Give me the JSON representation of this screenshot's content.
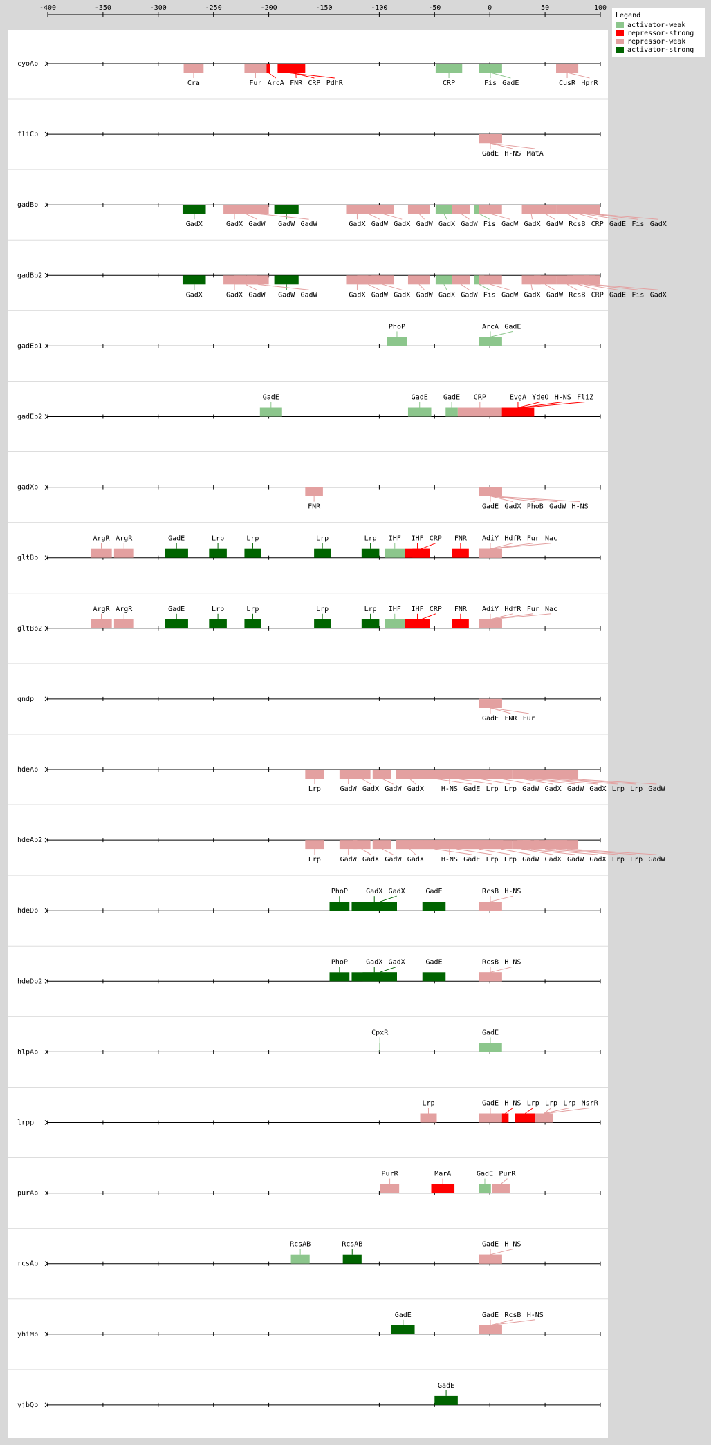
{
  "axis": {
    "range": [
      -400,
      100
    ],
    "ticks": [
      -400,
      -350,
      -300,
      -250,
      -200,
      -150,
      -100,
      -50,
      0,
      50,
      100
    ]
  },
  "legend": {
    "title": "Legend",
    "items": [
      {
        "label": "activator-weak",
        "color": "#8cc68c"
      },
      {
        "label": "repressor-strong",
        "color": "#ff0000"
      },
      {
        "label": "repressor-weak",
        "color": "#e3a0a0"
      },
      {
        "label": "activator-strong",
        "color": "#006400"
      }
    ]
  },
  "rows": [
    {
      "name": "cyoAp",
      "side": "below",
      "sites": [
        [
          "Cra",
          2,
          -277,
          -259
        ],
        [
          "Fur",
          2,
          -222,
          -202
        ],
        [
          "ArcA",
          1,
          -202,
          -199
        ],
        [
          "FNR",
          1,
          -184,
          -167
        ],
        [
          "CRP",
          1,
          -188,
          -172
        ],
        [
          "PdhR",
          1,
          -192,
          -176
        ],
        [
          "CRP",
          0,
          -49,
          -25
        ],
        [
          "Fis",
          0,
          -10,
          11
        ],
        [
          "GadE",
          0,
          -10,
          11
        ],
        [
          "CusR",
          2,
          60,
          80
        ],
        [
          "HprR",
          2,
          60,
          80
        ]
      ]
    },
    {
      "name": "fliCp",
      "side": "below",
      "sites": [
        [
          "GadE",
          2,
          -10,
          11
        ],
        [
          "H-NS",
          2,
          -10,
          11
        ],
        [
          "MatA",
          2,
          -10,
          11
        ]
      ]
    },
    {
      "name": "gadBp",
      "side": "below",
      "sites": [
        [
          "GadX",
          3,
          -278,
          -257
        ],
        [
          "GadX",
          2,
          -241,
          -221
        ],
        [
          "GadW",
          2,
          -231,
          -211
        ],
        [
          "GadW",
          3,
          -195,
          -173
        ],
        [
          "GadW",
          2,
          -220,
          -200
        ],
        [
          "GadX",
          2,
          -130,
          -110
        ],
        [
          "GadW",
          2,
          -120,
          -100
        ],
        [
          "GadX",
          2,
          -107,
          -87
        ],
        [
          "GadW",
          2,
          -74,
          -54
        ],
        [
          "GadX",
          0,
          -49,
          -34
        ],
        [
          "GadW",
          2,
          -34,
          -18
        ],
        [
          "Fis",
          0,
          -14,
          -5
        ],
        [
          "GadW",
          2,
          -10,
          11
        ],
        [
          "GadX",
          2,
          29,
          46
        ],
        [
          "GadW",
          2,
          40,
          60
        ],
        [
          "RcsB",
          2,
          60,
          80
        ],
        [
          "CRP",
          2,
          70,
          90
        ],
        [
          "GadE",
          2,
          75,
          95
        ],
        [
          "Fis",
          2,
          80,
          100
        ],
        [
          "GadX",
          2,
          85,
          100
        ]
      ]
    },
    {
      "name": "gadBp2",
      "side": "below",
      "sites": [
        [
          "GadX",
          3,
          -278,
          -257
        ],
        [
          "GadX",
          2,
          -241,
          -221
        ],
        [
          "GadW",
          2,
          -231,
          -211
        ],
        [
          "GadW",
          3,
          -195,
          -173
        ],
        [
          "GadW",
          2,
          -220,
          -200
        ],
        [
          "GadX",
          2,
          -130,
          -110
        ],
        [
          "GadW",
          2,
          -120,
          -100
        ],
        [
          "GadX",
          2,
          -107,
          -87
        ],
        [
          "GadW",
          2,
          -74,
          -54
        ],
        [
          "GadX",
          0,
          -49,
          -34
        ],
        [
          "GadW",
          2,
          -34,
          -18
        ],
        [
          "Fis",
          0,
          -14,
          -5
        ],
        [
          "GadW",
          2,
          -10,
          11
        ],
        [
          "GadX",
          2,
          29,
          46
        ],
        [
          "GadW",
          2,
          40,
          60
        ],
        [
          "RcsB",
          2,
          60,
          80
        ],
        [
          "CRP",
          2,
          70,
          90
        ],
        [
          "GadE",
          2,
          75,
          95
        ],
        [
          "Fis",
          2,
          80,
          100
        ],
        [
          "GadX",
          2,
          85,
          100
        ]
      ]
    },
    {
      "name": "gadEp1",
      "side": "above",
      "sites": [
        [
          "PhoP",
          0,
          -93,
          -75
        ],
        [
          "ArcA",
          0,
          -10,
          11
        ],
        [
          "GadE",
          0,
          -10,
          11
        ]
      ]
    },
    {
      "name": "gadEp2",
      "side": "above",
      "sites": [
        [
          "GadE",
          0,
          -208,
          -188
        ],
        [
          "GadE",
          0,
          -74,
          -53
        ],
        [
          "GadE",
          0,
          -40,
          -29
        ],
        [
          "CRP",
          2,
          -29,
          11
        ],
        [
          "EvgA",
          1,
          11,
          40
        ],
        [
          "YdeO",
          1,
          11,
          40
        ],
        [
          "H-NS",
          1,
          15,
          40
        ],
        [
          "FliZ",
          1,
          20,
          40
        ]
      ]
    },
    {
      "name": "gadXp",
      "side": "below",
      "sites": [
        [
          "FNR",
          2,
          -167,
          -151
        ],
        [
          "GadE",
          2,
          -10,
          11
        ],
        [
          "GadX",
          2,
          -10,
          11
        ],
        [
          "PhoB",
          2,
          -10,
          11
        ],
        [
          "GadW",
          2,
          -10,
          11
        ],
        [
          "H-NS",
          2,
          -10,
          11
        ]
      ]
    },
    {
      "name": "gltBp",
      "side": "above",
      "sites": [
        [
          "ArgR",
          2,
          -361,
          -342
        ],
        [
          "ArgR",
          2,
          -340,
          -322
        ],
        [
          "GadE",
          3,
          -294,
          -273
        ],
        [
          "Lrp",
          3,
          -254,
          -238
        ],
        [
          "Lrp",
          3,
          -222,
          -207
        ],
        [
          "Lrp",
          3,
          -159,
          -144
        ],
        [
          "Lrp",
          3,
          -116,
          -100
        ],
        [
          "IHF",
          0,
          -95,
          -77
        ],
        [
          "IHF",
          1,
          -77,
          -54
        ],
        [
          "CRP",
          1,
          -70,
          -54
        ],
        [
          "FNR",
          1,
          -34,
          -19
        ],
        [
          "AdiY",
          2,
          -10,
          11
        ],
        [
          "HdfR",
          2,
          -10,
          11
        ],
        [
          "Fur",
          2,
          -10,
          11
        ],
        [
          "Nac",
          2,
          -10,
          11
        ]
      ]
    },
    {
      "name": "gltBp2",
      "side": "above",
      "sites": [
        [
          "ArgR",
          2,
          -361,
          -342
        ],
        [
          "ArgR",
          2,
          -340,
          -322
        ],
        [
          "GadE",
          3,
          -294,
          -273
        ],
        [
          "Lrp",
          3,
          -254,
          -238
        ],
        [
          "Lrp",
          3,
          -222,
          -207
        ],
        [
          "Lrp",
          3,
          -159,
          -144
        ],
        [
          "Lrp",
          3,
          -116,
          -100
        ],
        [
          "IHF",
          0,
          -95,
          -77
        ],
        [
          "IHF",
          1,
          -77,
          -54
        ],
        [
          "CRP",
          1,
          -70,
          -54
        ],
        [
          "FNR",
          1,
          -34,
          -19
        ],
        [
          "AdiY",
          2,
          -10,
          11
        ],
        [
          "HdfR",
          2,
          -10,
          11
        ],
        [
          "Fur",
          2,
          -10,
          11
        ],
        [
          "Nac",
          2,
          -10,
          11
        ]
      ]
    },
    {
      "name": "gndp",
      "side": "below",
      "sites": [
        [
          "GadE",
          2,
          -10,
          11
        ],
        [
          "FNR",
          2,
          -10,
          11
        ],
        [
          "Fur",
          2,
          -10,
          11
        ]
      ]
    },
    {
      "name": "hdeAp",
      "side": "below",
      "sites": [
        [
          "Lrp",
          2,
          -167,
          -150
        ],
        [
          "GadW",
          2,
          -136,
          -120
        ],
        [
          "GadX",
          2,
          -124,
          -108
        ],
        [
          "GadW",
          2,
          -106,
          -89
        ],
        [
          "GadX",
          2,
          -85,
          -60
        ],
        [
          "H-NS",
          2,
          -85,
          12
        ],
        [
          "GadE",
          2,
          -60,
          -40
        ],
        [
          "Lrp",
          2,
          -40,
          -20
        ],
        [
          "Lrp",
          2,
          -20,
          0
        ],
        [
          "GadW",
          2,
          0,
          20
        ],
        [
          "GadX",
          2,
          20,
          37
        ],
        [
          "GadW",
          2,
          25,
          37
        ],
        [
          "GadX",
          2,
          30,
          45
        ],
        [
          "Lrp",
          2,
          40,
          60
        ],
        [
          "Lrp",
          2,
          50,
          70
        ],
        [
          "GadW",
          2,
          60,
          80
        ]
      ]
    },
    {
      "name": "hdeAp2",
      "side": "below",
      "sites": [
        [
          "Lrp",
          2,
          -167,
          -150
        ],
        [
          "GadW",
          2,
          -136,
          -120
        ],
        [
          "GadX",
          2,
          -124,
          -108
        ],
        [
          "GadW",
          2,
          -106,
          -89
        ],
        [
          "GadX",
          2,
          -85,
          -60
        ],
        [
          "H-NS",
          2,
          -85,
          12
        ],
        [
          "GadE",
          2,
          -60,
          -40
        ],
        [
          "Lrp",
          2,
          -40,
          -20
        ],
        [
          "Lrp",
          2,
          -20,
          0
        ],
        [
          "GadW",
          2,
          0,
          20
        ],
        [
          "GadX",
          2,
          20,
          37
        ],
        [
          "GadW",
          2,
          25,
          37
        ],
        [
          "GadX",
          2,
          30,
          45
        ],
        [
          "Lrp",
          2,
          40,
          60
        ],
        [
          "Lrp",
          2,
          50,
          70
        ],
        [
          "GadW",
          2,
          60,
          80
        ]
      ]
    },
    {
      "name": "hdeDp",
      "side": "above",
      "sites": [
        [
          "PhoP",
          3,
          -145,
          -127
        ],
        [
          "GadX",
          3,
          -125,
          -84
        ],
        [
          "GadX",
          3,
          -115,
          -84
        ],
        [
          "GadE",
          3,
          -61,
          -40
        ],
        [
          "RcsB",
          2,
          -10,
          11
        ],
        [
          "H-NS",
          2,
          -10,
          11
        ]
      ]
    },
    {
      "name": "hdeDp2",
      "side": "above",
      "sites": [
        [
          "PhoP",
          3,
          -145,
          -127
        ],
        [
          "GadX",
          3,
          -125,
          -84
        ],
        [
          "GadX",
          3,
          -115,
          -84
        ],
        [
          "GadE",
          3,
          -61,
          -40
        ],
        [
          "RcsB",
          2,
          -10,
          11
        ],
        [
          "H-NS",
          2,
          -10,
          11
        ]
      ]
    },
    {
      "name": "hlpAp",
      "side": "above",
      "sites": [
        [
          "CpxR",
          0,
          -100,
          -99
        ],
        [
          "GadE",
          0,
          -10,
          11
        ]
      ]
    },
    {
      "name": "lrpp",
      "side": "above",
      "sites": [
        [
          "Lrp",
          2,
          -63,
          -48
        ],
        [
          "GadE",
          2,
          -10,
          11
        ],
        [
          "H-NS",
          1,
          11,
          17
        ],
        [
          "Lrp",
          1,
          23,
          41
        ],
        [
          "Lrp",
          2,
          41,
          57
        ],
        [
          "Lrp",
          2,
          41,
          57
        ],
        [
          "NsrR",
          2,
          45,
          57
        ]
      ]
    },
    {
      "name": "purAp",
      "side": "above",
      "sites": [
        [
          "PurR",
          2,
          -99,
          -82
        ],
        [
          "MarA",
          1,
          -53,
          -32
        ],
        [
          "GadE",
          0,
          -10,
          1
        ],
        [
          "PurR",
          2,
          2,
          18
        ]
      ]
    },
    {
      "name": "rcsAp",
      "side": "above",
      "sites": [
        [
          "RcsAB",
          0,
          -180,
          -163
        ],
        [
          "RcsAB",
          3,
          -133,
          -116
        ],
        [
          "GadE",
          2,
          -10,
          11
        ],
        [
          "H-NS",
          2,
          -10,
          11
        ]
      ]
    },
    {
      "name": "yhiMp",
      "side": "above",
      "sites": [
        [
          "GadE",
          3,
          -89,
          -68
        ],
        [
          "GadE",
          2,
          -10,
          11
        ],
        [
          "RcsB",
          2,
          -10,
          11
        ],
        [
          "H-NS",
          2,
          -10,
          11
        ]
      ]
    },
    {
      "name": "yjbQp",
      "side": "above",
      "sites": [
        [
          "GadE",
          3,
          -50,
          -29
        ]
      ]
    }
  ]
}
